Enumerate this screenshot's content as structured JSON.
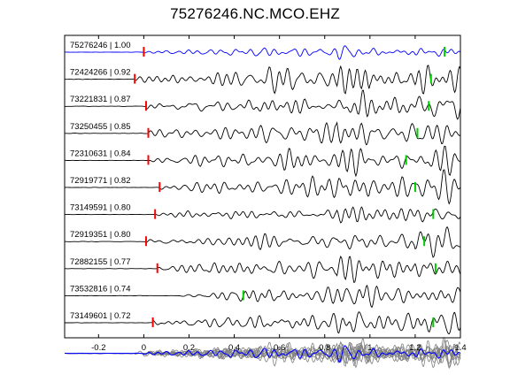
{
  "chart_data": {
    "type": "line",
    "title": "75276246.NC.MCO.EHZ",
    "xlabel": "",
    "ylabel": "",
    "xlim": [
      -0.35,
      1.4
    ],
    "x_ticks": [
      -0.2,
      0,
      0.2,
      0.4,
      0.6,
      0.8,
      1,
      1.2,
      1.4
    ],
    "grid": false,
    "legend": "none",
    "colors": {
      "reference_trace": "#0000ff",
      "trace": "#000000",
      "stack_trace": "#808080",
      "pick_red": "#ff0000",
      "pick_green": "#00cc00"
    },
    "traces": [
      {
        "label": "75276246 | 1.00",
        "red_pick": 0.0,
        "green_pick": 1.33,
        "reference": true
      },
      {
        "label": "72424266 | 0.92",
        "red_pick": -0.04,
        "green_pick": 1.27
      },
      {
        "label": "73221831 | 0.87",
        "red_pick": 0.01,
        "green_pick": 1.26
      },
      {
        "label": "73250455 | 0.85",
        "red_pick": 0.02,
        "green_pick": 1.21
      },
      {
        "label": "72310631 | 0.84",
        "red_pick": 0.02,
        "green_pick": 1.16
      },
      {
        "label": "72919771 | 0.82",
        "red_pick": 0.07,
        "green_pick": 1.2
      },
      {
        "label": "73149591 | 0.80",
        "red_pick": 0.05,
        "green_pick": 1.28
      },
      {
        "label": "72919351 | 0.80",
        "red_pick": 0.01,
        "green_pick": 1.24
      },
      {
        "label": "72882155 | 0.77",
        "red_pick": 0.06,
        "green_pick": 1.29
      },
      {
        "label": "73532816 | 0.74",
        "red_pick": null,
        "green_pick": 0.44
      },
      {
        "label": "73149601 | 0.72",
        "red_pick": 0.04,
        "green_pick": 1.28
      }
    ],
    "stack_row": {
      "label": "",
      "overlay_count": 11
    }
  }
}
